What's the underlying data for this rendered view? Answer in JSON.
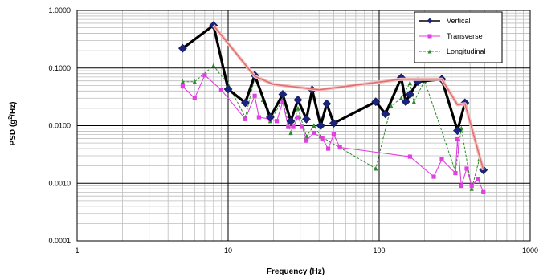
{
  "chart_data": {
    "type": "line",
    "x_scale": "log",
    "y_scale": "log",
    "xlim": [
      1,
      1000
    ],
    "ylim": [
      0.0001,
      1
    ],
    "xlabel": "Frequency (Hz)",
    "ylabel_parts": [
      "PSD (g",
      "2",
      "/Hz)"
    ],
    "x_ticks": [
      "1",
      "10",
      "100",
      "1000"
    ],
    "y_ticks": [
      "0.0001",
      "0.0010",
      "0.0100",
      "0.1000",
      "1.0000"
    ],
    "grid": true,
    "legend_position": "top-right",
    "series": [
      {
        "name": "Vertical",
        "color": "#1a237e",
        "marker": "diamond",
        "points": [
          [
            5,
            0.22
          ],
          [
            8,
            0.55
          ],
          [
            10,
            0.043
          ],
          [
            13,
            0.025
          ],
          [
            15,
            0.075
          ],
          [
            19,
            0.014
          ],
          [
            23,
            0.035
          ],
          [
            26,
            0.012
          ],
          [
            29,
            0.028
          ],
          [
            33,
            0.013
          ],
          [
            36,
            0.042
          ],
          [
            41,
            0.01
          ],
          [
            45,
            0.024
          ],
          [
            50,
            0.011
          ],
          [
            95,
            0.026
          ],
          [
            110,
            0.016
          ],
          [
            140,
            0.068
          ],
          [
            150,
            0.026
          ],
          [
            160,
            0.035
          ],
          [
            180,
            0.058
          ],
          [
            260,
            0.064
          ],
          [
            330,
            0.0082
          ],
          [
            370,
            0.025
          ],
          [
            490,
            0.0017
          ]
        ]
      },
      {
        "name": "Transverse",
        "color": "#e040e0",
        "marker": "square",
        "points": [
          [
            5,
            0.048
          ],
          [
            6,
            0.03
          ],
          [
            7,
            0.075
          ],
          [
            9,
            0.042
          ],
          [
            13,
            0.013
          ],
          [
            15,
            0.033
          ],
          [
            16,
            0.014
          ],
          [
            19,
            0.013
          ],
          [
            21,
            0.012
          ],
          [
            23,
            0.026
          ],
          [
            25,
            0.0095
          ],
          [
            27,
            0.0095
          ],
          [
            29,
            0.014
          ],
          [
            31,
            0.0095
          ],
          [
            33,
            0.0055
          ],
          [
            37,
            0.0075
          ],
          [
            42,
            0.006
          ],
          [
            46,
            0.004
          ],
          [
            50,
            0.007
          ],
          [
            55,
            0.0042
          ],
          [
            160,
            0.0029
          ],
          [
            230,
            0.0013
          ],
          [
            260,
            0.0026
          ],
          [
            320,
            0.0015
          ],
          [
            330,
            0.0058
          ],
          [
            350,
            0.0009
          ],
          [
            380,
            0.0018
          ],
          [
            410,
            0.0009
          ],
          [
            450,
            0.0012
          ],
          [
            490,
            0.0007
          ]
        ]
      },
      {
        "name": "Longitudinal",
        "color": "#2e8b2e",
        "marker": "triangle",
        "points": [
          [
            5,
            0.058
          ],
          [
            6,
            0.058
          ],
          [
            8,
            0.11
          ],
          [
            10,
            0.052
          ],
          [
            13,
            0.014
          ],
          [
            15,
            0.068
          ],
          [
            17,
            0.028
          ],
          [
            19,
            0.012
          ],
          [
            23,
            0.028
          ],
          [
            26,
            0.0075
          ],
          [
            29,
            0.02
          ],
          [
            33,
            0.0065
          ],
          [
            37,
            0.01
          ],
          [
            41,
            0.0065
          ],
          [
            95,
            0.0018
          ],
          [
            120,
            0.022
          ],
          [
            140,
            0.03
          ],
          [
            160,
            0.055
          ],
          [
            170,
            0.026
          ],
          [
            200,
            0.06
          ],
          [
            320,
            0.0016
          ],
          [
            350,
            0.009
          ],
          [
            410,
            0.0008
          ],
          [
            460,
            0.0026
          ],
          [
            490,
            0.0018
          ]
        ]
      },
      {
        "name": "",
        "color": "#e07070",
        "marker": "none",
        "points": [
          [
            8,
            0.55
          ],
          [
            15,
            0.072
          ],
          [
            20,
            0.052
          ],
          [
            40,
            0.042
          ],
          [
            140,
            0.064
          ],
          [
            260,
            0.064
          ],
          [
            330,
            0.023
          ],
          [
            370,
            0.024
          ],
          [
            490,
            0.0017
          ]
        ]
      }
    ]
  }
}
